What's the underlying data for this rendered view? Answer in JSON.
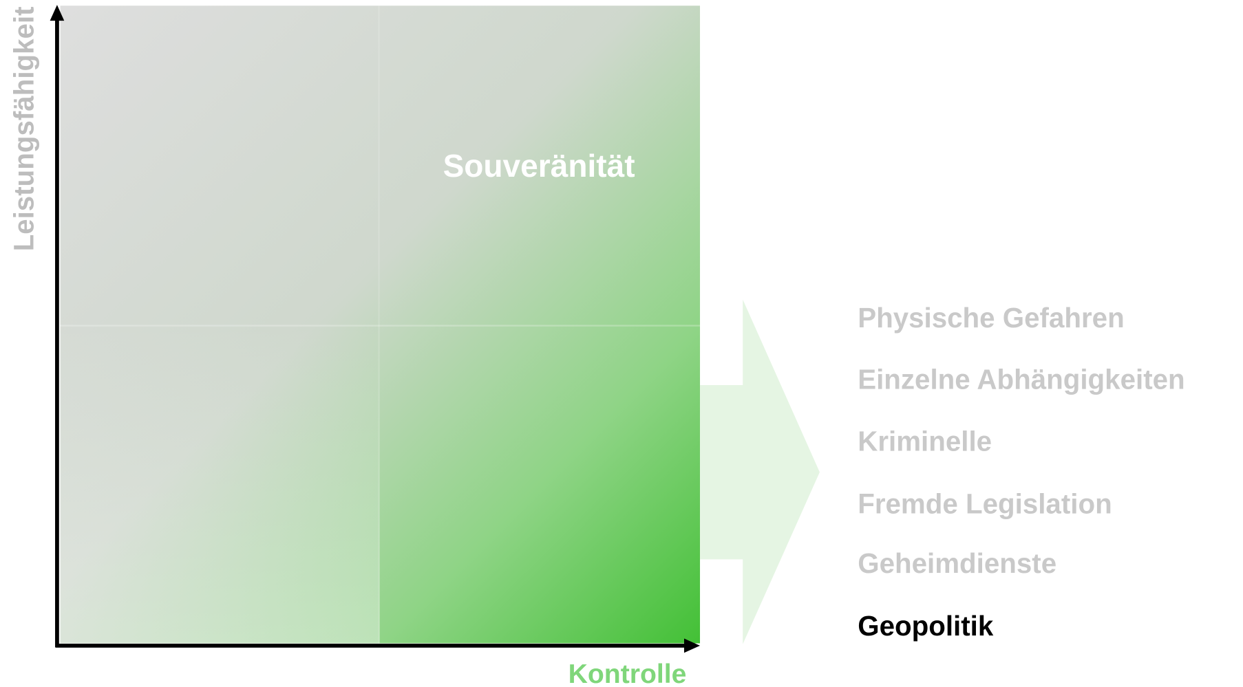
{
  "axes": {
    "y_label": "Leistungsfähigkeit",
    "x_label": "Kontrolle"
  },
  "quadrant_label": "Souveränität",
  "list": {
    "items": [
      "Physische Gefahren",
      "Einzelne Abhängigkeiten",
      "Kriminelle",
      "Fremde Legislation",
      "Geheimdienste",
      "Geopolitik"
    ]
  }
}
